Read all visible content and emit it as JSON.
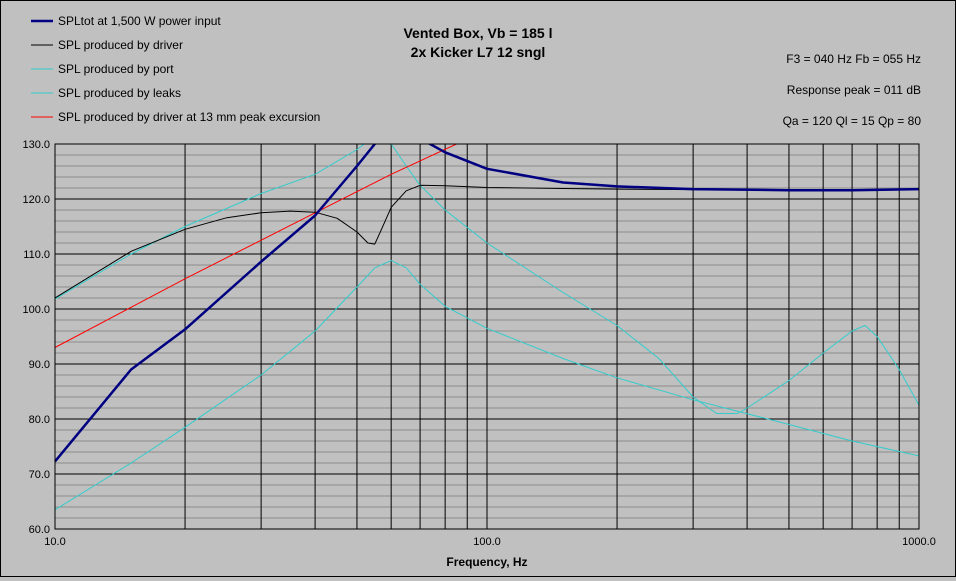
{
  "title_line1": "Vented Box, Vb = 185 l",
  "title_line2": "2x Kicker L7 12 sngl",
  "info": {
    "f3_fb": "F3 = 040 Hz  Fb = 055 Hz",
    "response_peak": "Response peak = 011 dB",
    "q_values": "Qa = 120  Ql = 15  Qp = 80"
  },
  "legend": [
    {
      "label": "SPLtot at 1,500 W power input",
      "color": "#000080",
      "width": 2.5
    },
    {
      "label": "SPL produced by driver",
      "color": "#000000",
      "width": 1
    },
    {
      "label": "SPL produced by port",
      "color": "#33cccc",
      "width": 1
    },
    {
      "label": "SPL produced by leaks",
      "color": "#33cccc",
      "width": 1
    },
    {
      "label": "SPL produced by driver at 13 mm peak excursion",
      "color": "#ff0000",
      "width": 1
    }
  ],
  "chart_data": {
    "type": "line",
    "xlabel": "Frequency, Hz",
    "ylabel": "",
    "xscale": "log",
    "xlim": [
      10,
      1000
    ],
    "ylim": [
      60,
      130
    ],
    "x_ticks": [
      "10.0",
      "100.0",
      "1000.0"
    ],
    "y_ticks": [
      "60.0",
      "70.0",
      "80.0",
      "90.0",
      "100.0",
      "110.0",
      "120.0",
      "130.0"
    ],
    "grid": true,
    "series": [
      {
        "name": "SPLtot at 1,500 W power input",
        "x": [
          10,
          15,
          20,
          30,
          40,
          50,
          55,
          60,
          70,
          80,
          100,
          150,
          200,
          300,
          500,
          700,
          1000
        ],
        "y": [
          72.3,
          89,
          96.3,
          108.6,
          117,
          126,
          130,
          133,
          131,
          128.5,
          125.5,
          123,
          122.3,
          121.8,
          121.6,
          121.6,
          121.8
        ]
      },
      {
        "name": "SPL produced by driver",
        "x": [
          10,
          15,
          20,
          25,
          30,
          35,
          40,
          45,
          50,
          53,
          55,
          57,
          60,
          65,
          70,
          80,
          100,
          150,
          200,
          300,
          500,
          1000
        ],
        "y": [
          102,
          110.5,
          114.5,
          116.6,
          117.5,
          117.8,
          117.6,
          116.5,
          114,
          112,
          111.8,
          114.5,
          118.5,
          121.5,
          122.5,
          122.4,
          122.1,
          121.9,
          121.8,
          121.7,
          121.6,
          121.8
        ]
      },
      {
        "name": "SPL produced by port",
        "x": [
          10,
          15,
          20,
          30,
          40,
          50,
          55,
          60,
          65,
          70,
          80,
          100,
          150,
          200,
          250,
          300,
          340,
          380,
          400,
          500,
          600,
          700,
          750,
          800,
          900,
          1000
        ],
        "y": [
          101.8,
          110,
          115,
          121,
          124.5,
          129,
          131.5,
          130,
          126,
          122.5,
          118,
          112,
          103,
          97,
          91,
          84,
          81,
          81,
          82,
          87,
          92,
          96,
          97,
          95,
          89,
          82.5
        ]
      },
      {
        "name": "SPL produced by leaks",
        "x": [
          10,
          15,
          20,
          30,
          40,
          50,
          55,
          60,
          65,
          70,
          80,
          100,
          150,
          200,
          300,
          500,
          700,
          1000
        ],
        "y": [
          63.5,
          72,
          78.5,
          88,
          96,
          104,
          107.5,
          108.8,
          107.5,
          104.5,
          100.5,
          96.5,
          91,
          87.5,
          83.5,
          79,
          76,
          73.3
        ]
      },
      {
        "name": "SPL produced by driver at 13 mm peak excursion",
        "x": [
          10,
          20,
          40,
          60,
          85
        ],
        "y": [
          93,
          105.5,
          117.5,
          124.5,
          130
        ]
      }
    ]
  }
}
